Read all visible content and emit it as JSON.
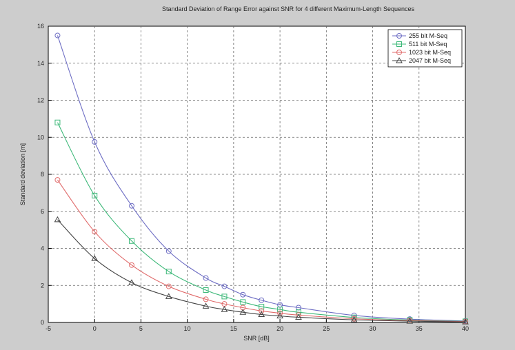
{
  "chart_data": {
    "type": "line",
    "title": "Standard Deviation of Range Error against SNR for 4 different Maximum-Length Sequences",
    "xlabel": "SNR [dB]",
    "ylabel": "Standard deviation [m]",
    "xlim": [
      -5,
      40
    ],
    "ylim": [
      0,
      16
    ],
    "xticks": [
      -5,
      0,
      5,
      10,
      15,
      20,
      25,
      30,
      35,
      40
    ],
    "yticks": [
      0,
      2,
      4,
      6,
      8,
      10,
      12,
      14,
      16
    ],
    "grid": true,
    "legend_position": "top-right",
    "x": [
      -4,
      0,
      4,
      8,
      12,
      14,
      16,
      18,
      20,
      22,
      28,
      34,
      40
    ],
    "series": [
      {
        "name": "255 bit M-Seq",
        "color": "#6e6ec4",
        "marker": "circle",
        "values": [
          15.5,
          9.75,
          6.3,
          3.85,
          2.4,
          1.95,
          1.5,
          1.2,
          0.95,
          0.8,
          0.38,
          0.18,
          0.08
        ]
      },
      {
        "name": "511 bit M-Seq",
        "color": "#3cb878",
        "marker": "square",
        "values": [
          10.8,
          6.85,
          4.4,
          2.75,
          1.75,
          1.4,
          1.1,
          0.85,
          0.7,
          0.55,
          0.27,
          0.13,
          0.06
        ]
      },
      {
        "name": "1023 bit M-Seq",
        "color": "#e06a6a",
        "marker": "circle",
        "values": [
          7.7,
          4.9,
          3.1,
          1.95,
          1.25,
          1.0,
          0.8,
          0.62,
          0.5,
          0.4,
          0.2,
          0.1,
          0.05
        ]
      },
      {
        "name": "2047 bit M-Seq",
        "color": "#444444",
        "marker": "triangle",
        "values": [
          5.55,
          3.45,
          2.15,
          1.4,
          0.88,
          0.7,
          0.55,
          0.43,
          0.35,
          0.28,
          0.14,
          0.07,
          0.03
        ]
      }
    ]
  }
}
